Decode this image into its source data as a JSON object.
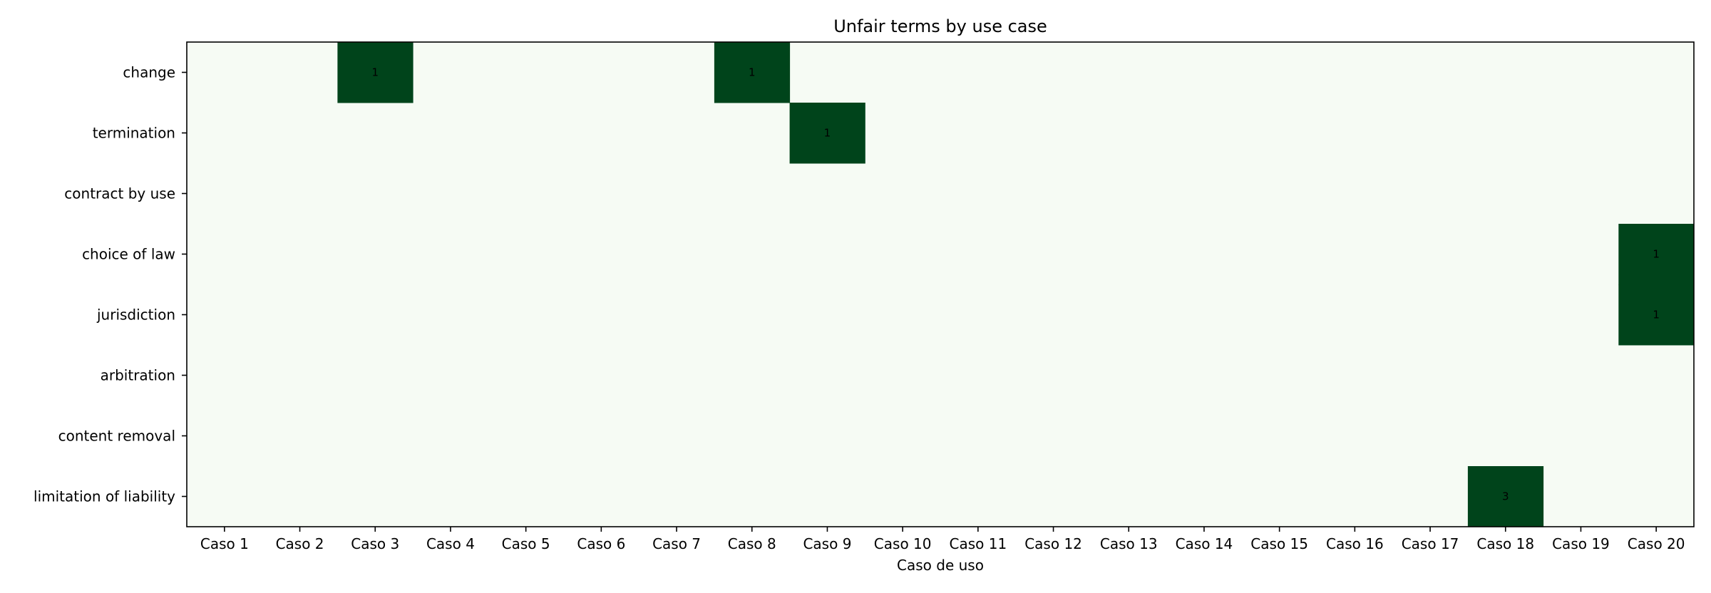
{
  "chart_data": {
    "type": "heatmap",
    "title": "Unfair terms by use case",
    "xlabel": "Caso de uso",
    "ylabel": "",
    "x_categories": [
      "Caso 1",
      "Caso 2",
      "Caso 3",
      "Caso 4",
      "Caso 5",
      "Caso 6",
      "Caso 7",
      "Caso 8",
      "Caso 9",
      "Caso 10",
      "Caso 11",
      "Caso 12",
      "Caso 13",
      "Caso 14",
      "Caso 15",
      "Caso 16",
      "Caso 17",
      "Caso 18",
      "Caso 19",
      "Caso 20"
    ],
    "y_categories": [
      "change",
      "termination",
      "contract by use",
      "choice of law",
      "jurisdiction",
      "arbitration",
      "content removal",
      "limitation of liability"
    ],
    "cells": [
      {
        "row": 0,
        "col": 2,
        "value": 1
      },
      {
        "row": 0,
        "col": 7,
        "value": 1
      },
      {
        "row": 1,
        "col": 8,
        "value": 1
      },
      {
        "row": 3,
        "col": 19,
        "value": 1
      },
      {
        "row": 4,
        "col": 19,
        "value": 1
      },
      {
        "row": 7,
        "col": 17,
        "value": 3
      }
    ],
    "colors": {
      "empty": "#f6fbf4",
      "filled": "#00441b",
      "frame": "#000000"
    }
  }
}
